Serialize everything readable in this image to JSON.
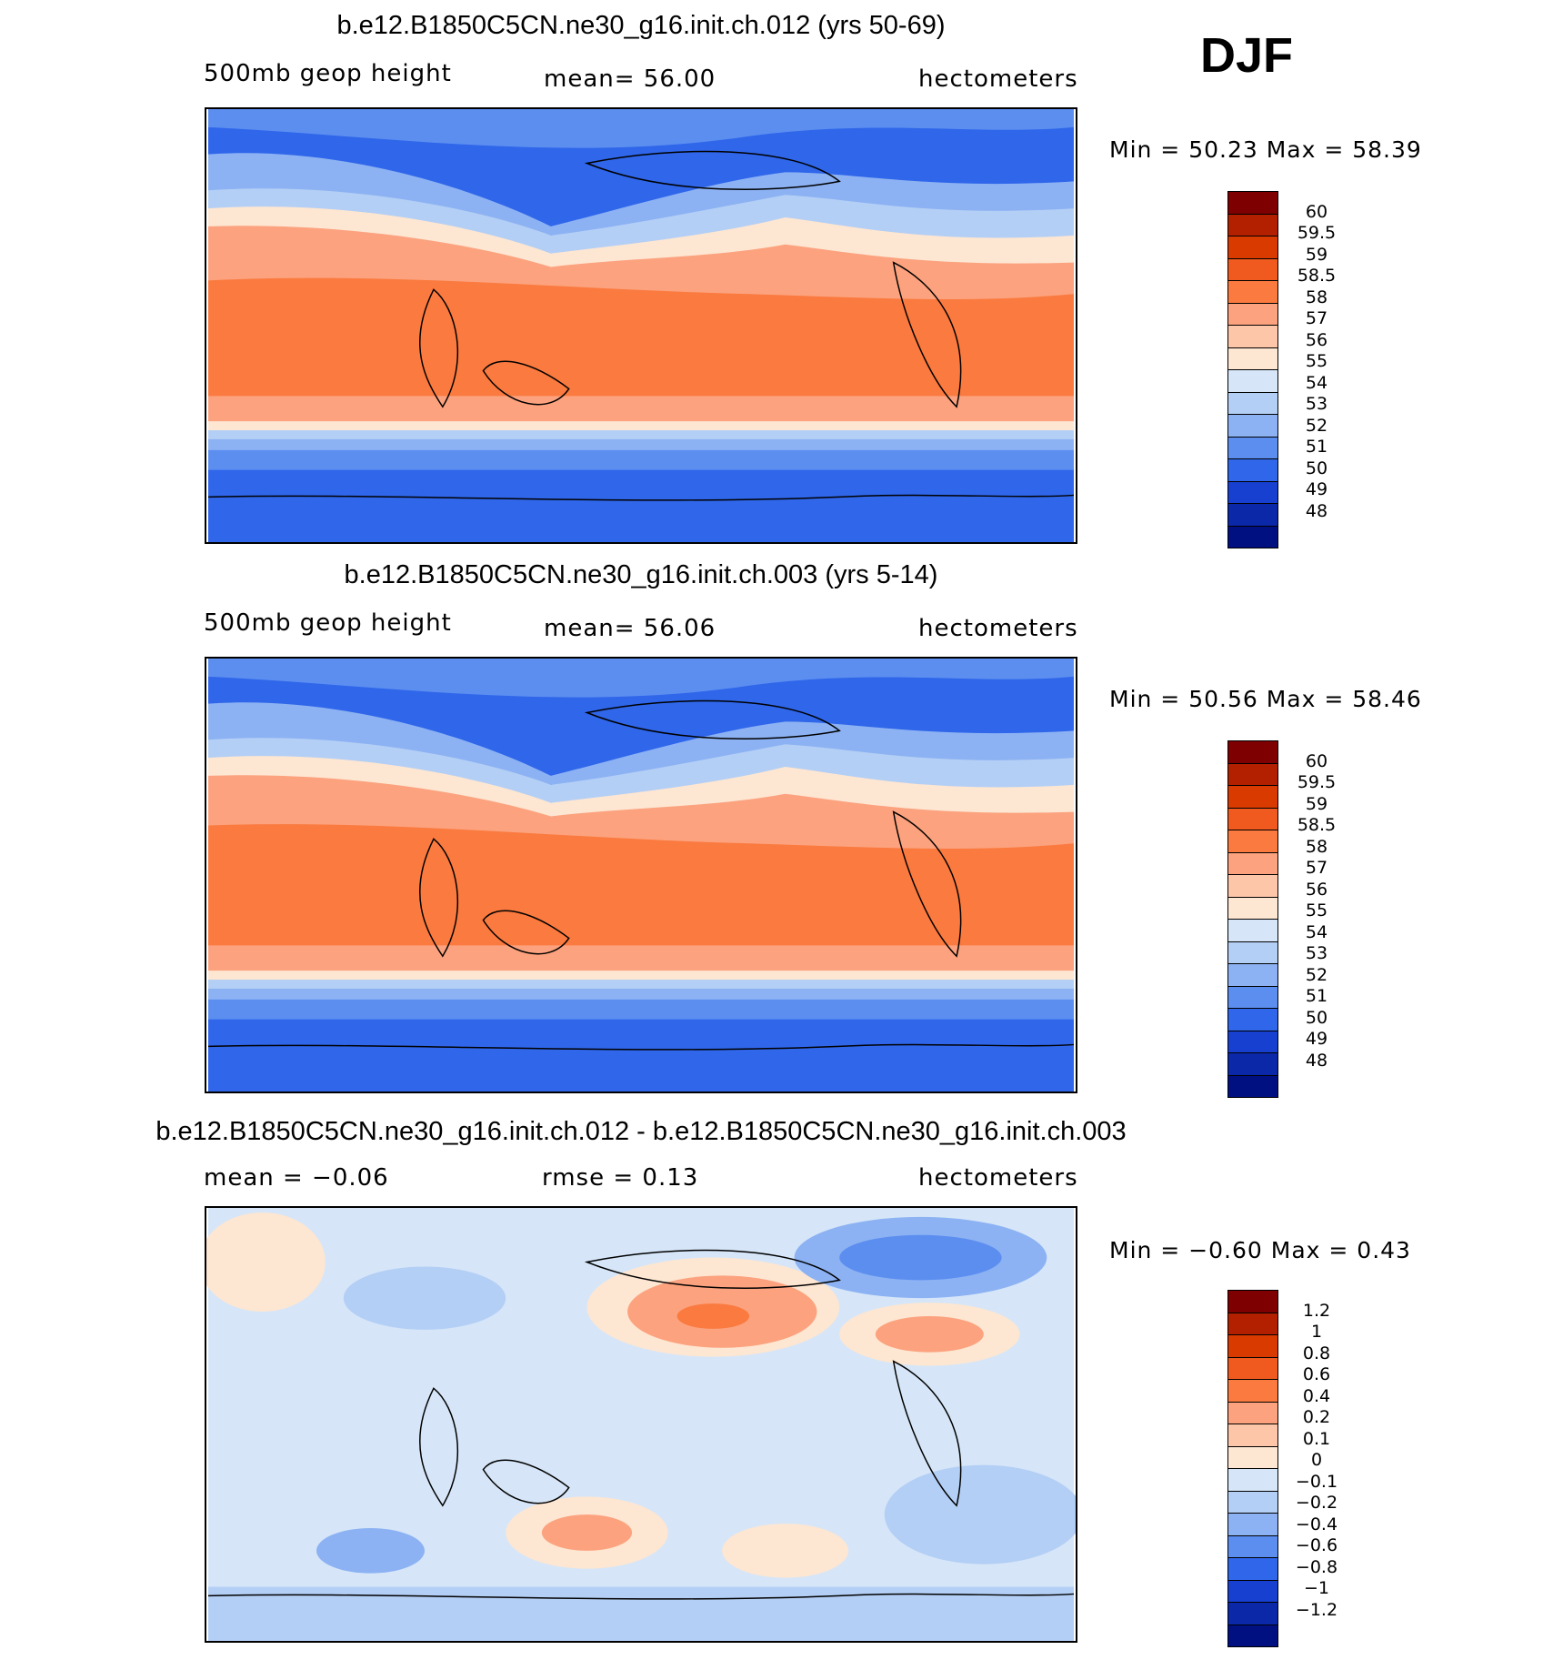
{
  "season": "DJF",
  "panels": [
    {
      "title": "b.e12.B1850C5CN.ne30_g16.init.ch.012 (yrs 50-69)",
      "left_label": "500mb geop height",
      "center_label": "mean=   56.00",
      "right_label": "hectometers",
      "minmax": "Min =   50.23 Max =   58.39",
      "colorbar": {
        "labels": [
          "60",
          "59.5",
          "59",
          "58.5",
          "58",
          "57",
          "56",
          "55",
          "54",
          "53",
          "52",
          "51",
          "50",
          "49",
          "48"
        ],
        "colors": [
          "#7f0000",
          "#b22000",
          "#d93a00",
          "#f05a1e",
          "#fa7a3f",
          "#fca27e",
          "#fdc6a8",
          "#fde6d2",
          "#d6e6f8",
          "#b4cff5",
          "#8cb2f3",
          "#5c8ef0",
          "#2f66ea",
          "#1840d0",
          "#0a28a8",
          "#001080"
        ]
      }
    },
    {
      "title": "b.e12.B1850C5CN.ne30_g16.init.ch.003 (yrs 5-14)",
      "left_label": "500mb geop height",
      "center_label": "mean=   56.06",
      "right_label": "hectometers",
      "minmax": "Min =   50.56 Max =   58.46",
      "colorbar": {
        "labels": [
          "60",
          "59.5",
          "59",
          "58.5",
          "58",
          "57",
          "56",
          "55",
          "54",
          "53",
          "52",
          "51",
          "50",
          "49",
          "48"
        ],
        "colors": [
          "#7f0000",
          "#b22000",
          "#d93a00",
          "#f05a1e",
          "#fa7a3f",
          "#fca27e",
          "#fdc6a8",
          "#fde6d2",
          "#d6e6f8",
          "#b4cff5",
          "#8cb2f3",
          "#5c8ef0",
          "#2f66ea",
          "#1840d0",
          "#0a28a8",
          "#001080"
        ]
      }
    },
    {
      "title": "b.e12.B1850C5CN.ne30_g16.init.ch.012 - b.e12.B1850C5CN.ne30_g16.init.ch.003",
      "left_label": "mean =   −0.06",
      "center_label": "rmse =    0.13",
      "right_label": "hectometers",
      "minmax": "Min =   −0.60 Max =    0.43",
      "colorbar": {
        "labels": [
          "1.2",
          "1",
          "0.8",
          "0.6",
          "0.4",
          "0.2",
          "0.1",
          "0",
          "−0.1",
          "−0.2",
          "−0.4",
          "−0.6",
          "−0.8",
          "−1",
          "−1.2"
        ],
        "colors": [
          "#7f0000",
          "#b22000",
          "#d93a00",
          "#f05a1e",
          "#fa7a3f",
          "#fca27e",
          "#fdc6a8",
          "#fde6d2",
          "#d6e6f8",
          "#b4cff5",
          "#8cb2f3",
          "#5c8ef0",
          "#2f66ea",
          "#1840d0",
          "#0a28a8",
          "#001080"
        ]
      }
    }
  ]
}
